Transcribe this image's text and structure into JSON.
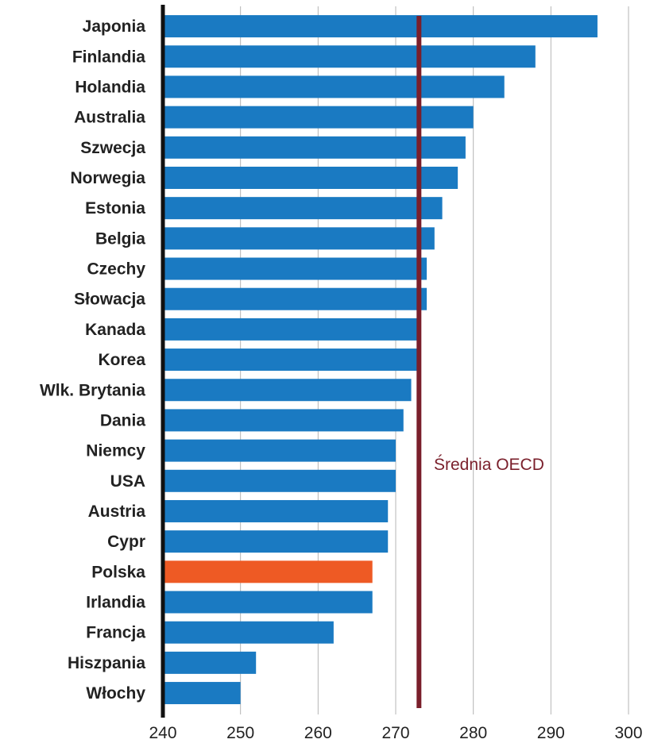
{
  "chart_data": {
    "type": "bar",
    "orientation": "horizontal",
    "categories": [
      "Japonia",
      "Finlandia",
      "Holandia",
      "Australia",
      "Szwecja",
      "Norwegia",
      "Estonia",
      "Belgia",
      "Czechy",
      "Słowacja",
      "Kanada",
      "Korea",
      "Wlk. Brytania",
      "Dania",
      "Niemcy",
      "USA",
      "Austria",
      "Cypr",
      "Polska",
      "Irlandia",
      "Francja",
      "Hiszpania",
      "Włochy"
    ],
    "values": [
      296,
      288,
      284,
      280,
      279,
      278,
      276,
      275,
      274,
      274,
      273,
      273,
      272,
      271,
      270,
      270,
      269,
      269,
      267,
      267,
      262,
      252,
      250
    ],
    "highlight_category": "Polska",
    "colors": {
      "bar": "#1a7ac2",
      "highlight": "#ee5a24",
      "reference": "#7a1f2b",
      "grid": "#b5b5b5",
      "axis": "#111111"
    },
    "xlim": [
      240,
      300
    ],
    "xticks": [
      240,
      250,
      260,
      270,
      280,
      290,
      300
    ],
    "reference_line": {
      "value": 273,
      "label": "Średnia OECD"
    },
    "title": "",
    "xlabel": "",
    "ylabel": "",
    "grid": "vertical",
    "legend": "none"
  }
}
